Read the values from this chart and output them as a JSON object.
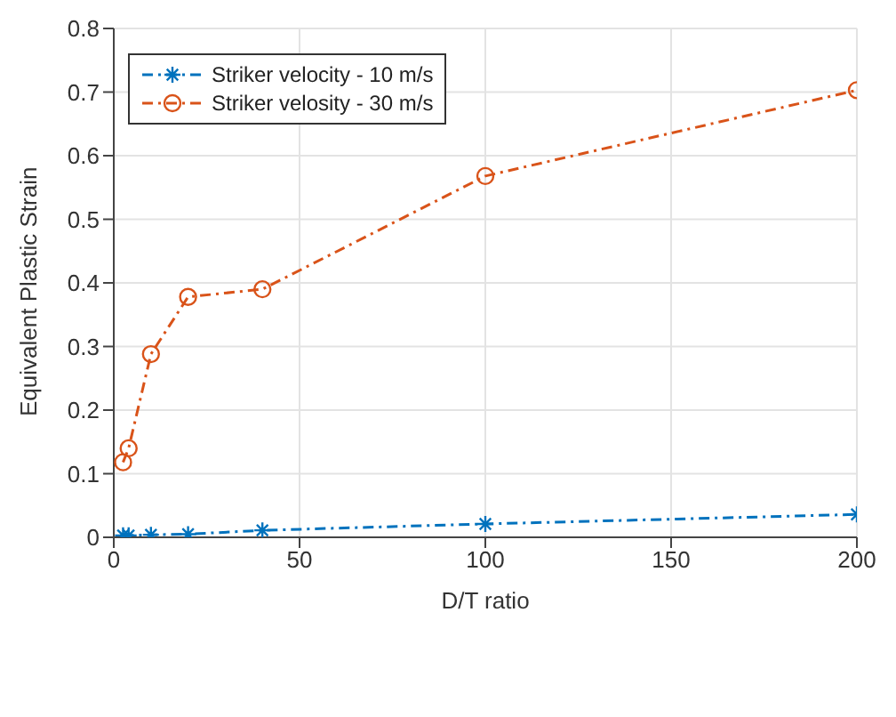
{
  "chart_data": {
    "type": "line",
    "xlabel": "D/T ratio",
    "ylabel": "Equivalent Plastic Strain",
    "x": [
      2.5,
      4,
      10,
      20,
      40,
      100,
      200
    ],
    "series": [
      {
        "name": "Striker velocity - 10 m/s",
        "color": "#0072bd",
        "marker": "cross",
        "values": [
          0.003,
          0.003,
          0.004,
          0.005,
          0.011,
          0.021,
          0.036
        ]
      },
      {
        "name": "Striker velosity - 30 m/s",
        "color": "#d95319",
        "marker": "circle",
        "values": [
          0.118,
          0.14,
          0.288,
          0.378,
          0.39,
          0.568,
          0.703
        ]
      }
    ],
    "xlim": [
      0,
      200
    ],
    "xticks": [
      0,
      50,
      100,
      150,
      200
    ],
    "ylim": [
      0,
      0.8
    ],
    "yticks": [
      0,
      0.1,
      0.2,
      0.3,
      0.4,
      0.5,
      0.6,
      0.7,
      0.8
    ],
    "grid": true,
    "legend": "top left",
    "line_style": "dashed"
  }
}
